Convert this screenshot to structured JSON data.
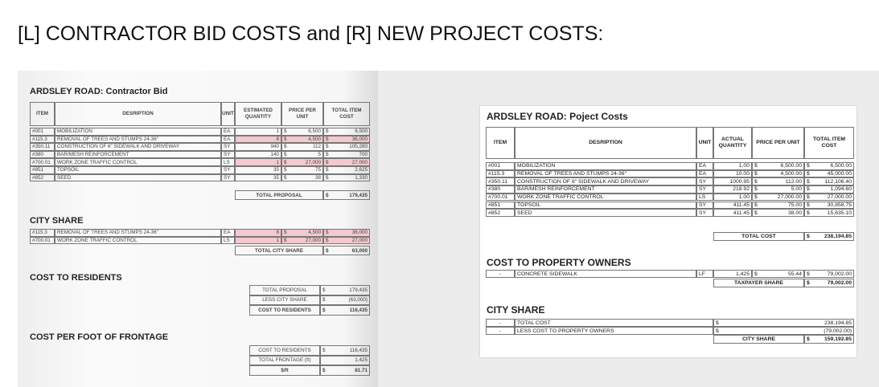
{
  "title": "[L] CONTRACTOR BID COSTS  and [R] NEW PROJECT COSTS:",
  "left": {
    "bid": {
      "title": "ARDSLEY ROAD: Contractor Bid",
      "headers": [
        "ITEM",
        "DESRIPTION",
        "UNIT",
        "ESTIMATED QUANTITY",
        "PRICE PER UNIT",
        "TOTAL ITEM COST"
      ],
      "rows": [
        [
          "#001",
          "MOBILIZATION",
          "EA",
          "1",
          "$",
          "6,500",
          "$",
          "6,500"
        ],
        [
          "#115.3",
          "REMOVAL OF TREES AND STUMPS 24-36\"",
          "EA",
          "8",
          "$",
          "4,500",
          "$",
          "36,000"
        ],
        [
          "#350.11",
          "CONSTRUCTION OF 6\" SIDEWALK AND DRIVEWAY",
          "SY",
          "940",
          "$",
          "112",
          "$",
          "105,280"
        ],
        [
          "#380",
          "BAR/MESH REINFORCEMENT",
          "SY",
          "140",
          "$",
          "5",
          "$",
          "700"
        ],
        [
          "#700.01",
          "WORK ZONE TRAFFIC CONTROL",
          "LS",
          "1",
          "$",
          "27,000",
          "$",
          "27,000"
        ],
        [
          "#851",
          "TOPSOIL",
          "SY",
          "35",
          "$",
          "75",
          "$",
          "2,625"
        ],
        [
          "#852",
          "SEED",
          "SY",
          "35",
          "$",
          "38",
          "$",
          "1,330"
        ]
      ],
      "total": [
        "TOTAL PROPOSAL",
        "$",
        "179,435"
      ]
    },
    "city": {
      "title": "CITY SHARE",
      "rows": [
        [
          "#115.3",
          "REMOVAL OF TREES AND STUMPS 24-36\"",
          "EA",
          "8",
          "$",
          "4,500",
          "$",
          "36,000"
        ],
        [
          "#700.01",
          "WORK ZONE TRAFFIC CONTROL",
          "LS",
          "1",
          "$",
          "27,000",
          "$",
          "27,000"
        ]
      ],
      "total": [
        "TOTAL CITY SHARE",
        "$",
        "63,000"
      ]
    },
    "residents": {
      "title": "COST TO RESIDENTS",
      "rows": [
        [
          "TOTAL PROPOSAL",
          "$",
          "179,435"
        ],
        [
          "LESS CITY SHARE",
          "$",
          "(63,000)"
        ],
        [
          "COST TO RESIDENTS",
          "$",
          "116,435"
        ]
      ]
    },
    "per_foot": {
      "title": "COST PER FOOT OF FRONTAGE",
      "rows": [
        [
          "COST TO RESIDENTS",
          "$",
          "116,435"
        ],
        [
          "TOTAL FRONTAGE (ft)",
          "1,425"
        ],
        [
          "$/ft",
          "$",
          "81.71"
        ]
      ]
    }
  },
  "right": {
    "project": {
      "title": "ARDSLEY ROAD: Poject Costs",
      "headers": [
        "ITEM",
        "DESRIPTION",
        "UNIT",
        "ACTUAL QUANTITY",
        "PRICE PER UNIT",
        "TOTAL ITEM COST"
      ],
      "rows": [
        [
          "#001",
          "MOBILIZATION",
          "EA",
          "1.00",
          "$",
          "6,500.00",
          "$",
          "6,500.00"
        ],
        [
          "#115.3",
          "REMOVAL OF TREES AND STUMPS 24-36\"",
          "EA",
          "10.00",
          "$",
          "4,500.00",
          "$",
          "45,000.00"
        ],
        [
          "#350.11",
          "CONSTRUCTION OF 6\" SIDEWALK AND DRIVEWAY",
          "SY",
          "1000.95",
          "$",
          "112.00",
          "$",
          "112,106.40"
        ],
        [
          "#380",
          "BAR/MESH REINFORCEMENT",
          "SY",
          "218.92",
          "$",
          "5.00",
          "$",
          "1,094.60"
        ],
        [
          "#700.01",
          "WORK ZONE TRAFFIC CONTROL",
          "LS",
          "1.00",
          "$",
          "27,000.00",
          "$",
          "27,000.00"
        ],
        [
          "#851",
          "TOPSOIL",
          "SY",
          "411.45",
          "$",
          "75.00",
          "$",
          "30,858.75"
        ],
        [
          "#852",
          "SEED",
          "SY",
          "411.45",
          "$",
          "38.00",
          "$",
          "15,635.10"
        ]
      ],
      "total": [
        "TOTAL COST",
        "$",
        "238,194.85"
      ]
    },
    "owners": {
      "title": "COST TO PROPERTY OWNERS",
      "rows": [
        [
          "-",
          "CONCRETE SIDEWALK",
          "LF",
          "1,425",
          "$",
          "55.44",
          "$",
          "79,002.00"
        ]
      ],
      "total": [
        "TAXPAYER SHARE",
        "$",
        "79,002.00"
      ]
    },
    "city": {
      "title": "CITY SHARE",
      "rows": [
        [
          "-",
          "TOTAL COST",
          "$",
          "238,194.85"
        ],
        [
          "-",
          "LESS COST TO PROPERTY OWNERS",
          "$",
          "(79,002.00)"
        ]
      ],
      "total": [
        "CITY SHARE",
        "$",
        "159,192.85"
      ]
    }
  }
}
